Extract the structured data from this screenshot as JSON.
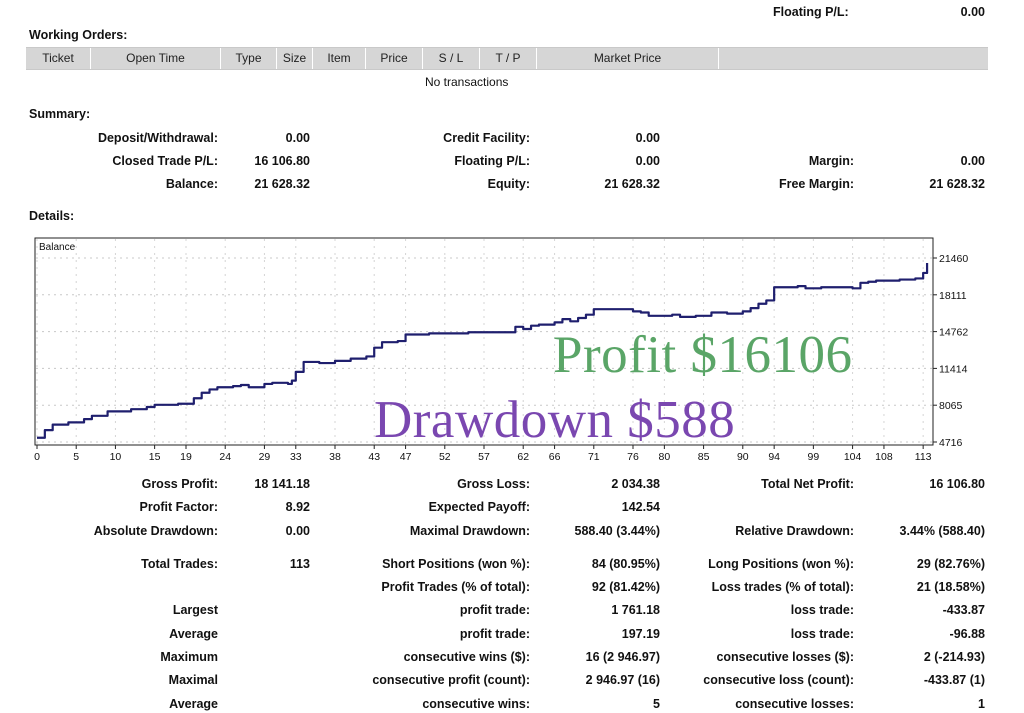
{
  "header": {
    "floating_label": "Floating P/L:",
    "floating_value": "0.00"
  },
  "working_orders": {
    "title": "Working Orders:",
    "columns": [
      "Ticket",
      "Open Time",
      "Type",
      "Size",
      "Item",
      "Price",
      "S / L",
      "T / P",
      "Market Price",
      ""
    ],
    "empty_text": "No transactions"
  },
  "summary": {
    "title": "Summary:",
    "deposit_label": "Deposit/Withdrawal:",
    "deposit_value": "0.00",
    "credit_label": "Credit Facility:",
    "credit_value": "0.00",
    "closed_label": "Closed Trade P/L:",
    "closed_value": "16 106.80",
    "floating_label": "Floating P/L:",
    "floating_value": "0.00",
    "margin_label": "Margin:",
    "margin_value": "0.00",
    "balance_label": "Balance:",
    "balance_value": "21 628.32",
    "equity_label": "Equity:",
    "equity_value": "21 628.32",
    "free_margin_label": "Free Margin:",
    "free_margin_value": "21 628.32"
  },
  "details": {
    "title": "Details:"
  },
  "overlay": {
    "profit": "Profit $16106",
    "drawdown": "Drawdown $588"
  },
  "chart_data": {
    "type": "line",
    "title": "Balance",
    "line_color": "#1f1f6e",
    "grid": true,
    "y_ticks": [
      21460,
      18111,
      14762,
      11414,
      8065,
      4716
    ],
    "ylim": [
      4716,
      21460
    ],
    "x_ticks": [
      0,
      5,
      10,
      15,
      19,
      24,
      29,
      33,
      38,
      43,
      47,
      52,
      57,
      62,
      66,
      71,
      76,
      80,
      85,
      90,
      94,
      99,
      104,
      108,
      113
    ],
    "xlim": [
      0,
      114
    ],
    "series": [
      {
        "x": [
          0,
          1,
          2,
          4,
          6,
          7,
          9,
          12,
          14,
          15,
          18,
          20,
          21,
          22,
          23,
          25,
          26,
          27,
          29,
          30,
          32,
          32.5,
          33,
          34,
          36,
          38,
          40,
          42,
          43,
          44,
          46,
          47,
          50,
          55,
          60,
          61,
          62,
          63,
          64,
          65,
          66,
          67,
          68,
          69,
          70,
          71,
          74,
          76,
          77,
          78,
          80,
          81,
          82,
          84,
          86,
          88,
          90,
          91,
          92,
          93,
          94,
          97,
          98,
          100,
          104,
          105,
          106,
          107,
          110,
          112,
          113,
          113.5
        ],
        "y": [
          5100,
          5800,
          6300,
          6500,
          6800,
          7100,
          7500,
          7700,
          7900,
          8100,
          8200,
          8700,
          9200,
          9500,
          9700,
          9800,
          9900,
          9700,
          10000,
          10100,
          10000,
          10300,
          11100,
          12000,
          11900,
          12100,
          12300,
          12500,
          13300,
          13800,
          13900,
          14500,
          14600,
          14700,
          14700,
          15200,
          15000,
          15300,
          15400,
          15400,
          15600,
          15900,
          15700,
          16000,
          16300,
          16800,
          16800,
          16600,
          16500,
          16200,
          16200,
          16300,
          16100,
          16200,
          16500,
          16400,
          16600,
          16900,
          17300,
          17600,
          18800,
          18900,
          18700,
          18800,
          18700,
          19200,
          19300,
          19400,
          19500,
          19600,
          20100,
          21000
        ]
      }
    ]
  },
  "stats": {
    "gross_profit_label": "Gross Profit:",
    "gross_profit_value": "18 141.18",
    "gross_loss_label": "Gross Loss:",
    "gross_loss_value": "2 034.38",
    "total_net_label": "Total Net Profit:",
    "total_net_value": "16 106.80",
    "profit_factor_label": "Profit Factor:",
    "profit_factor_value": "8.92",
    "expected_payoff_label": "Expected Payoff:",
    "expected_payoff_value": "142.54",
    "abs_dd_label": "Absolute Drawdown:",
    "abs_dd_value": "0.00",
    "max_dd_label": "Maximal Drawdown:",
    "max_dd_value": "588.40 (3.44%)",
    "rel_dd_label": "Relative Drawdown:",
    "rel_dd_value": "3.44% (588.40)",
    "total_trades_label": "Total Trades:",
    "total_trades_value": "113",
    "short_label": "Short Positions (won %):",
    "short_value": "84 (80.95%)",
    "long_label": "Long Positions (won %):",
    "long_value": "29 (82.76%)",
    "profit_trades_label": "Profit Trades (% of total):",
    "profit_trades_value": "92 (81.42%)",
    "loss_trades_label": "Loss trades (% of total):",
    "loss_trades_value": "21 (18.58%)",
    "largest_label": "Largest",
    "largest_profit_label": "profit trade:",
    "largest_profit_value": "1 761.18",
    "largest_loss_label": "loss trade:",
    "largest_loss_value": "-433.87",
    "average_label": "Average",
    "avg_profit_label": "profit trade:",
    "avg_profit_value": "197.19",
    "avg_loss_label": "loss trade:",
    "avg_loss_value": "-96.88",
    "maximum_label": "Maximum",
    "max_wins_label": "consecutive wins ($):",
    "max_wins_value": "16 (2 946.97)",
    "max_losses_label": "consecutive losses ($):",
    "max_losses_value": "2 (-214.93)",
    "maximal_label": "Maximal",
    "maximal_profit_label": "consecutive profit (count):",
    "maximal_profit_value": "2 946.97 (16)",
    "maximal_loss_label": "consecutive loss (count):",
    "maximal_loss_value": "-433.87 (1)",
    "average2_label": "Average",
    "avg_wins_label": "consecutive wins:",
    "avg_wins_value": "5",
    "avg_losses_label": "consecutive losses:",
    "avg_losses_value": "1"
  }
}
